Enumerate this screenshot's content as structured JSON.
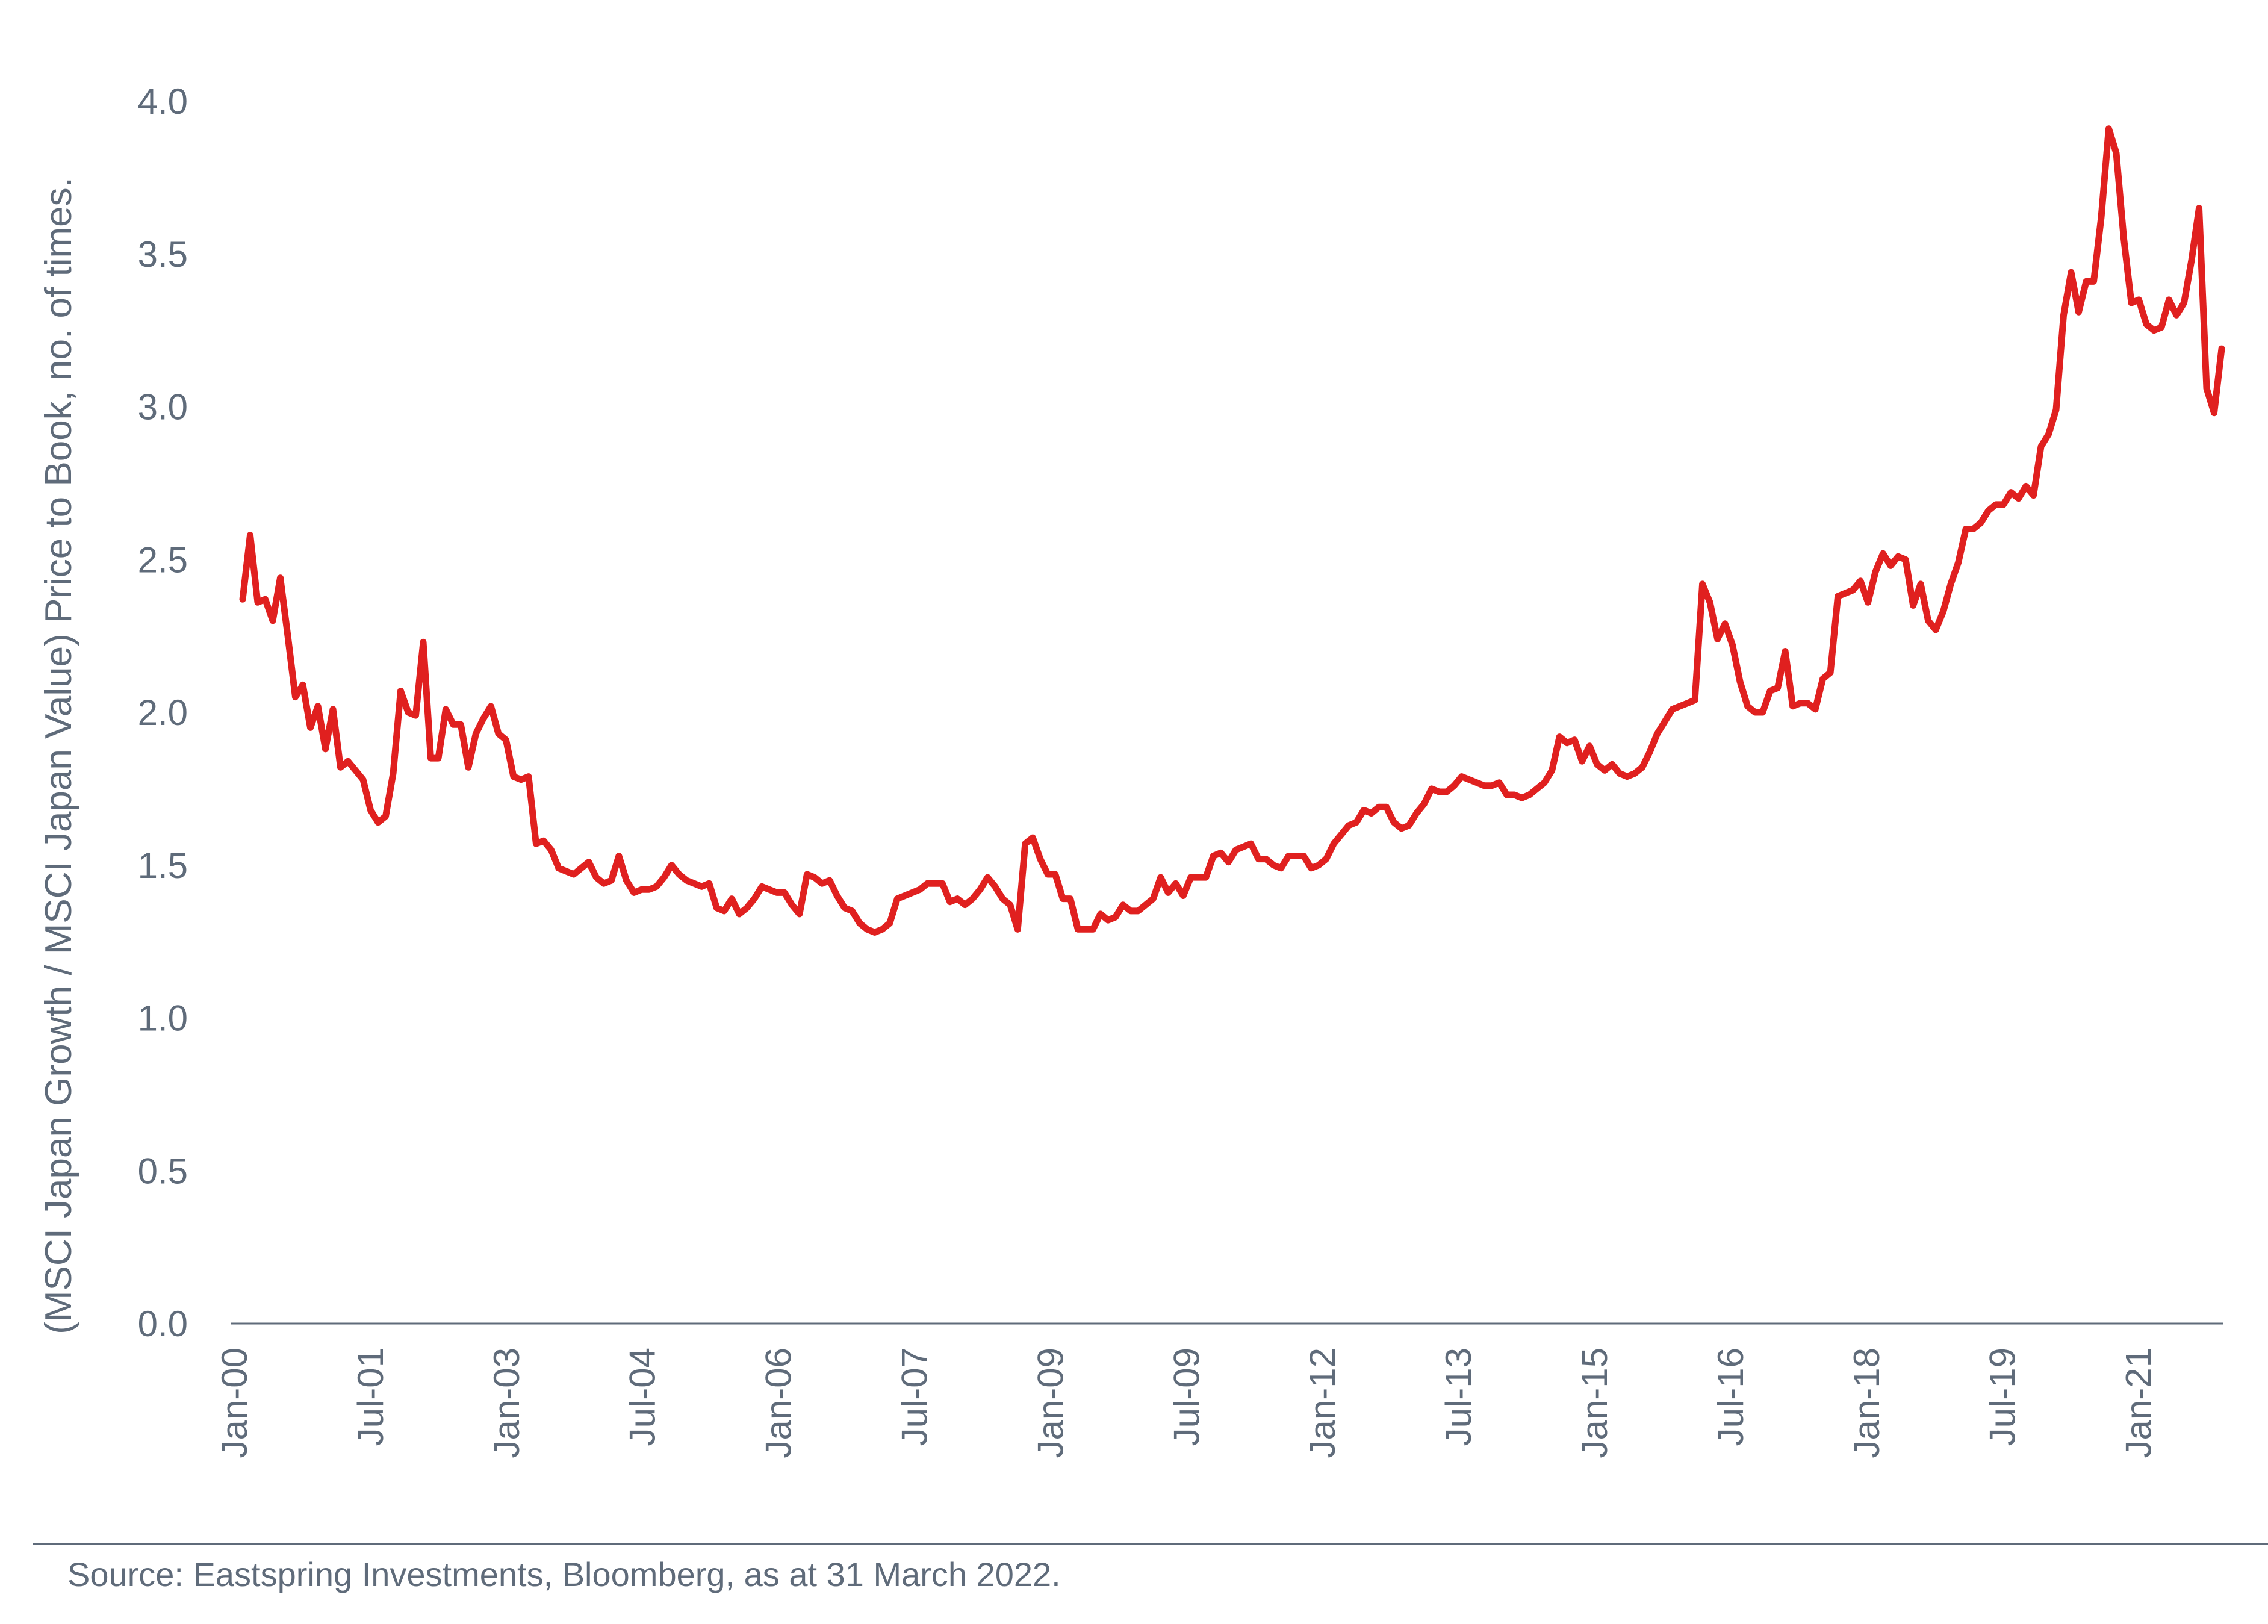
{
  "chart_data": {
    "type": "line",
    "title": "",
    "ylabel": "(MSCI Japan Growth / MSCI Japan Value) Price to Book, no. of times.",
    "xlabel": "",
    "ylim": [
      0,
      4.0
    ],
    "yticks": [
      "0.0",
      "0.5",
      "1.0",
      "1.5",
      "2.0",
      "2.5",
      "3.0",
      "3.5",
      "4.0"
    ],
    "xtick_labels": [
      "Jan-00",
      "Jul-01",
      "Jan-03",
      "Jul-04",
      "Jan-06",
      "Jul-07",
      "Jan-09",
      "Jul-09",
      "Jan-12",
      "Jul-13",
      "Jan-15",
      "Jul-16",
      "Jan-18",
      "Jul-19",
      "Jan-21"
    ],
    "grid": false,
    "legend": "none",
    "line_color": "#e0201f",
    "series": [
      {
        "values": [
          2.37,
          2.58,
          2.36,
          2.37,
          2.3,
          2.44,
          2.25,
          2.05,
          2.09,
          1.95,
          2.02,
          1.88,
          2.01,
          1.82,
          1.84,
          1.81,
          1.78,
          1.68,
          1.64,
          1.66,
          1.8,
          2.07,
          2.0,
          1.99,
          2.23,
          1.85,
          1.85,
          2.01,
          1.96,
          1.96,
          1.82,
          1.93,
          1.98,
          2.02,
          1.93,
          1.91,
          1.79,
          1.78,
          1.79,
          1.57,
          1.58,
          1.55,
          1.49,
          1.48,
          1.47,
          1.49,
          1.51,
          1.46,
          1.44,
          1.45,
          1.53,
          1.45,
          1.41,
          1.42,
          1.42,
          1.43,
          1.46,
          1.5,
          1.47,
          1.45,
          1.44,
          1.43,
          1.44,
          1.36,
          1.35,
          1.39,
          1.34,
          1.36,
          1.39,
          1.43,
          1.42,
          1.41,
          1.41,
          1.37,
          1.34,
          1.47,
          1.46,
          1.44,
          1.45,
          1.4,
          1.36,
          1.35,
          1.31,
          1.29,
          1.28,
          1.29,
          1.31,
          1.39,
          1.4,
          1.41,
          1.42,
          1.44,
          1.44,
          1.44,
          1.38,
          1.39,
          1.37,
          1.39,
          1.42,
          1.46,
          1.43,
          1.39,
          1.37,
          1.29,
          1.57,
          1.59,
          1.52,
          1.47,
          1.47,
          1.39,
          1.39,
          1.29,
          1.29,
          1.29,
          1.34,
          1.32,
          1.33,
          1.37,
          1.35,
          1.35,
          1.37,
          1.39,
          1.46,
          1.41,
          1.44,
          1.4,
          1.46,
          1.46,
          1.46,
          1.53,
          1.54,
          1.51,
          1.55,
          1.56,
          1.57,
          1.52,
          1.52,
          1.5,
          1.49,
          1.53,
          1.53,
          1.53,
          1.49,
          1.5,
          1.52,
          1.57,
          1.6,
          1.63,
          1.64,
          1.68,
          1.67,
          1.69,
          1.69,
          1.64,
          1.62,
          1.63,
          1.67,
          1.7,
          1.75,
          1.74,
          1.74,
          1.76,
          1.79,
          1.78,
          1.77,
          1.76,
          1.76,
          1.77,
          1.73,
          1.73,
          1.72,
          1.73,
          1.75,
          1.77,
          1.81,
          1.92,
          1.9,
          1.91,
          1.84,
          1.89,
          1.83,
          1.81,
          1.83,
          1.8,
          1.79,
          1.8,
          1.82,
          1.87,
          1.93,
          1.97,
          2.01,
          2.02,
          2.03,
          2.04,
          2.42,
          2.36,
          2.24,
          2.29,
          2.22,
          2.1,
          2.02,
          2.0,
          2.0,
          2.07,
          2.08,
          2.2,
          2.02,
          2.03,
          2.03,
          2.01,
          2.11,
          2.13,
          2.38,
          2.39,
          2.4,
          2.43,
          2.36,
          2.46,
          2.52,
          2.48,
          2.51,
          2.5,
          2.35,
          2.42,
          2.3,
          2.27,
          2.33,
          2.42,
          2.49,
          2.6,
          2.6,
          2.62,
          2.66,
          2.68,
          2.68,
          2.72,
          2.7,
          2.74,
          2.71,
          2.87,
          2.91,
          2.99,
          3.3,
          3.44,
          3.31,
          3.41,
          3.41,
          3.62,
          3.91,
          3.83,
          3.55,
          3.34,
          3.35,
          3.27,
          3.25,
          3.26,
          3.35,
          3.3,
          3.34,
          3.48,
          3.65,
          3.06,
          2.98,
          3.19
        ]
      }
    ]
  },
  "source_text": "Source: Eastspring Investments, Bloomberg, as at 31 March 2022."
}
